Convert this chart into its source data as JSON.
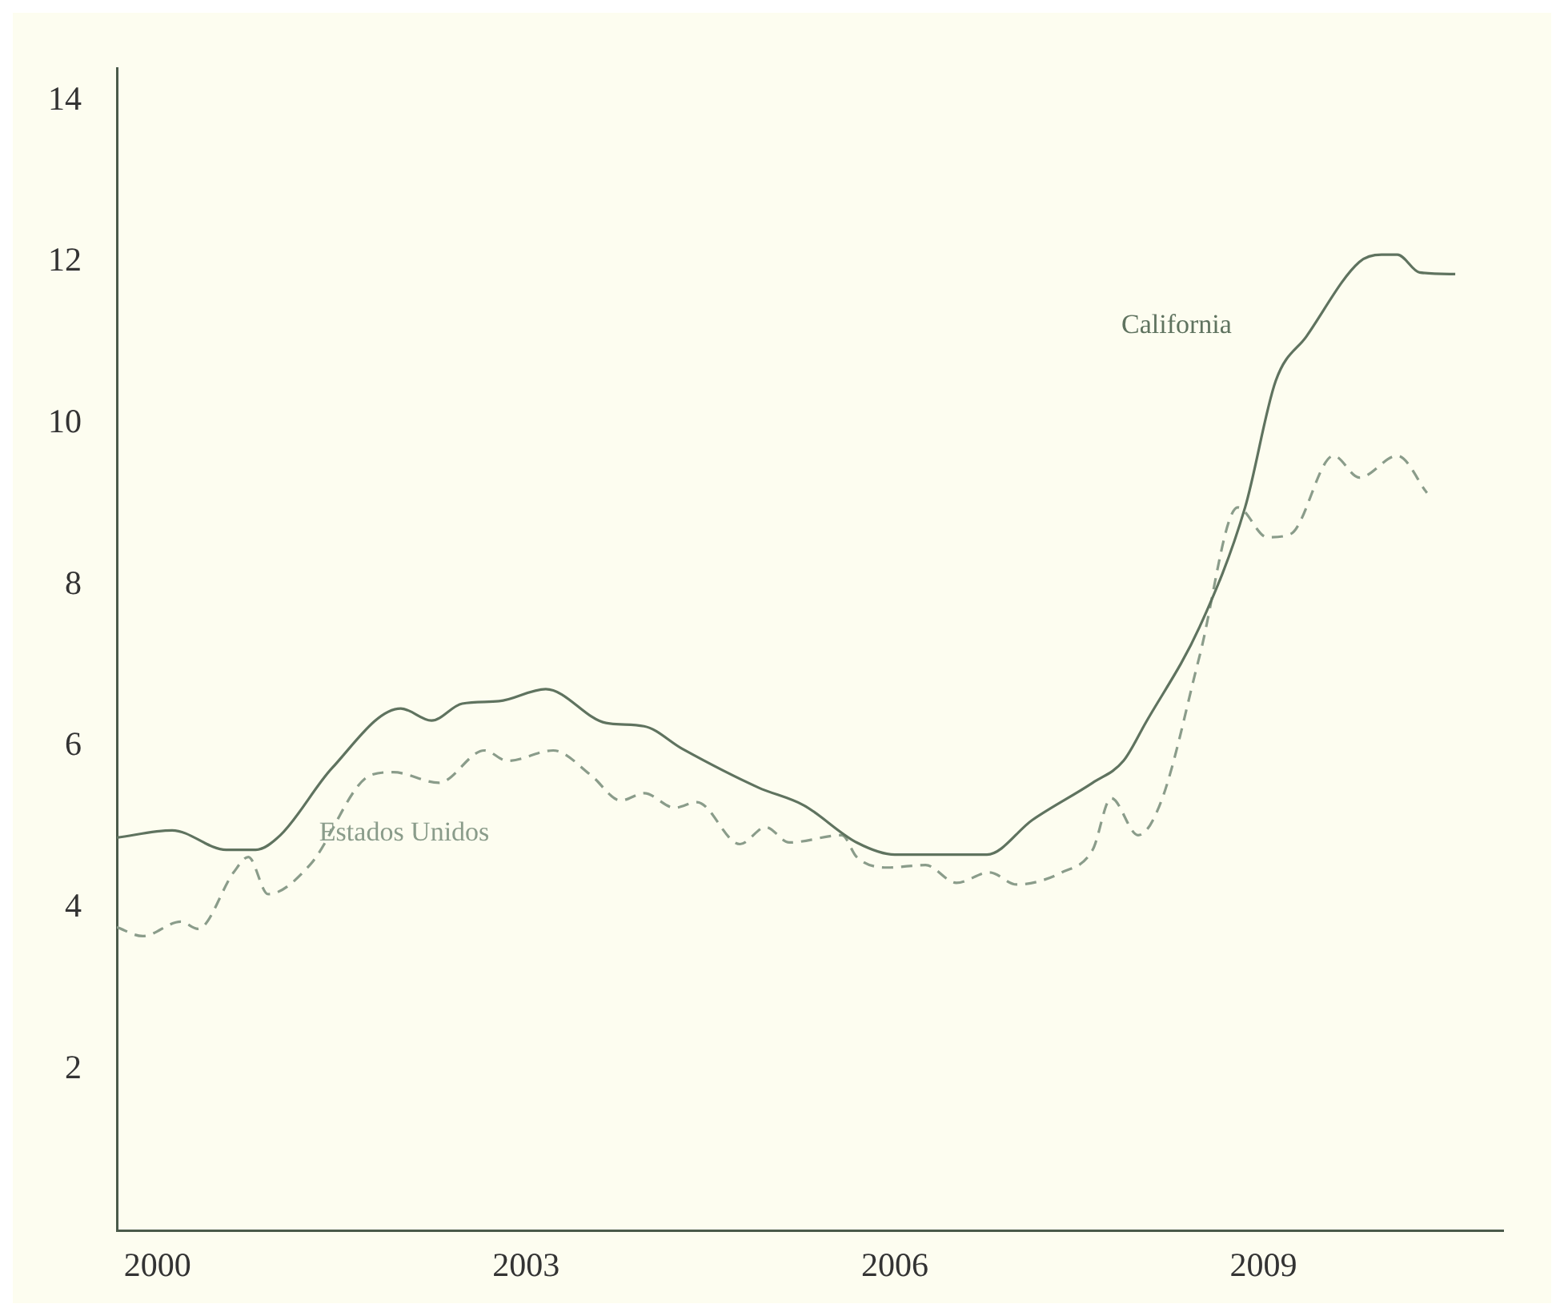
{
  "chart_data": {
    "type": "line",
    "xlim": [
      1999.67,
      2010.95
    ],
    "xticks": [
      2000,
      2003,
      2006,
      2009
    ],
    "ylim": [
      0,
      14.4
    ],
    "yticks": [
      2,
      4,
      6,
      8,
      10,
      12,
      14
    ],
    "grid": false,
    "legend": false,
    "marker": "none",
    "series": [
      {
        "name": "California",
        "color": "#5f735f",
        "line_style": "solid",
        "x": [
          1999.67,
          2000.12,
          2000.56,
          2000.8,
          2001.0,
          2001.42,
          2001.98,
          2002.23,
          2002.48,
          2002.78,
          2003.16,
          2003.65,
          2003.96,
          2004.27,
          2004.89,
          2005.26,
          2005.69,
          2006.0,
          2006.75,
          2007.12,
          2007.61,
          2007.86,
          2008.04,
          2008.48,
          2008.85,
          2009.1,
          2009.35,
          2009.78,
          2009.96,
          2010.09,
          2010.27,
          2010.56
        ],
        "values": [
          4.87,
          4.96,
          4.72,
          4.72,
          4.9,
          5.73,
          6.47,
          6.32,
          6.53,
          6.56,
          6.71,
          6.29,
          6.25,
          5.97,
          5.49,
          5.27,
          4.81,
          4.66,
          4.66,
          5.09,
          5.55,
          5.82,
          6.29,
          7.48,
          8.96,
          10.53,
          11.08,
          12.0,
          12.09,
          12.09,
          11.87,
          11.85
        ]
      },
      {
        "name": "Estados Unidos",
        "color": "#8a9c8a",
        "line_style": "dashed",
        "x": [
          1999.67,
          1999.88,
          2000.19,
          2000.33,
          2000.62,
          2000.74,
          2000.9,
          2001.24,
          2001.73,
          2001.92,
          2002.29,
          2002.66,
          2002.85,
          2003.22,
          2003.53,
          2003.77,
          2003.96,
          2004.21,
          2004.39,
          2004.74,
          2004.95,
          2005.14,
          2005.57,
          2005.69,
          2005.94,
          2006.25,
          2006.5,
          2006.77,
          2006.99,
          2007.36,
          2007.61,
          2007.76,
          2007.98,
          2008.17,
          2008.48,
          2008.79,
          2009.03,
          2009.22,
          2009.57,
          2009.78,
          2010.09,
          2010.33
        ],
        "values": [
          3.76,
          3.65,
          3.83,
          3.74,
          4.44,
          4.63,
          4.17,
          4.53,
          5.64,
          5.68,
          5.55,
          5.95,
          5.82,
          5.95,
          5.64,
          5.33,
          5.42,
          5.24,
          5.31,
          4.79,
          5.0,
          4.81,
          4.9,
          4.63,
          4.5,
          4.53,
          4.31,
          4.44,
          4.29,
          4.44,
          4.72,
          5.36,
          4.9,
          5.33,
          7.12,
          8.96,
          8.59,
          8.63,
          9.6,
          9.33,
          9.6,
          9.14
        ]
      }
    ]
  }
}
